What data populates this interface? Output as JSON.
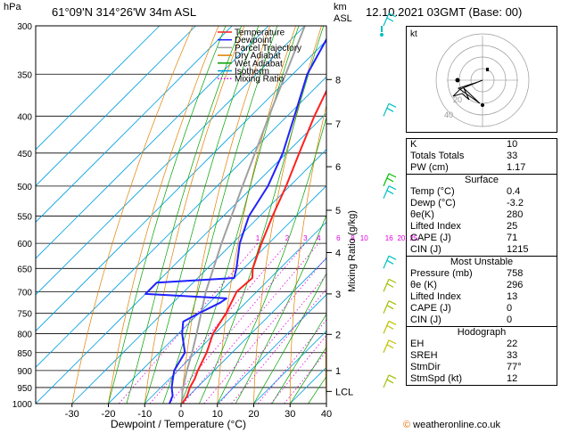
{
  "header": {
    "pressure_unit": "hPa",
    "location": "61°09'N  314°26'W  34m  ASL",
    "height_unit": "km",
    "height_ref": "ASL",
    "datetime": "12.10.2021  03GMT  (Base: 00)"
  },
  "chart_data": {
    "type": "skew-t",
    "xlabel": "Dewpoint / Temperature (°C)",
    "ylabel_right": "Mixing Ratio (g/kg)",
    "pressure_levels": [
      300,
      350,
      400,
      450,
      500,
      550,
      600,
      650,
      700,
      750,
      800,
      850,
      900,
      950,
      1000
    ],
    "temperature_ticks": [
      -30,
      -20,
      -10,
      0,
      10,
      20,
      30,
      40
    ],
    "xlim": [
      -40,
      40
    ],
    "ylim": [
      1000,
      300
    ],
    "km_ticks": [
      {
        "label": "8",
        "p": 356
      },
      {
        "label": "7",
        "p": 410
      },
      {
        "label": "6",
        "p": 470
      },
      {
        "label": "5",
        "p": 540
      },
      {
        "label": "4",
        "p": 618
      },
      {
        "label": "3",
        "p": 705
      },
      {
        "label": "2",
        "p": 802
      },
      {
        "label": "1",
        "p": 900
      },
      {
        "label": "LCL",
        "p": 962
      }
    ],
    "mixing_ratio_labels": [
      "1",
      "2",
      "3",
      "4",
      "6",
      "8",
      "10",
      "16",
      "20",
      "25"
    ],
    "mixing_ratio_values": [
      1,
      2,
      3,
      4,
      6,
      8,
      10,
      16,
      20,
      25
    ],
    "legend": [
      "Temperature",
      "Dewpoint",
      "Parcel Trajectory",
      "Dry Adiabat",
      "Wet Adiabat",
      "Isotherm",
      "Mixing Ratio"
    ],
    "legend_placement": "top-right",
    "colors": {
      "temperature": "#ff2020",
      "dewpoint": "#2020ff",
      "parcel": "#a0a0a0",
      "dry_adiabat": "#e08000",
      "wet_adiabat": "#00a000",
      "isotherm": "#00a0e0",
      "mixing_ratio": "#e000e0"
    },
    "temperature_profile": [
      {
        "p": 1000,
        "t": 0.4
      },
      {
        "p": 975,
        "t": -0.5
      },
      {
        "p": 950,
        "t": -2.0
      },
      {
        "p": 925,
        "t": -3.0
      },
      {
        "p": 900,
        "t": -4.5
      },
      {
        "p": 850,
        "t": -7.0
      },
      {
        "p": 800,
        "t": -10.5
      },
      {
        "p": 750,
        "t": -12.5
      },
      {
        "p": 700,
        "t": -15.5
      },
      {
        "p": 670,
        "t": -15.0
      },
      {
        "p": 650,
        "t": -17.5
      },
      {
        "p": 600,
        "t": -22.0
      },
      {
        "p": 550,
        "t": -26.5
      },
      {
        "p": 500,
        "t": -31.0
      },
      {
        "p": 450,
        "t": -36.5
      },
      {
        "p": 400,
        "t": -42.5
      },
      {
        "p": 350,
        "t": -48.5
      },
      {
        "p": 300,
        "t": -54.0
      }
    ],
    "dewpoint_profile": [
      {
        "p": 1000,
        "t": -3.2
      },
      {
        "p": 975,
        "t": -4.5
      },
      {
        "p": 950,
        "t": -7.0
      },
      {
        "p": 925,
        "t": -9.0
      },
      {
        "p": 900,
        "t": -11.0
      },
      {
        "p": 850,
        "t": -13.0
      },
      {
        "p": 800,
        "t": -19.0
      },
      {
        "p": 770,
        "t": -22.0
      },
      {
        "p": 750,
        "t": -20.0
      },
      {
        "p": 725,
        "t": -17.0
      },
      {
        "p": 715,
        "t": -16.5
      },
      {
        "p": 705,
        "t": -40.0
      },
      {
        "p": 690,
        "t": -40.0
      },
      {
        "p": 680,
        "t": -40.0
      },
      {
        "p": 670,
        "t": -20.0
      },
      {
        "p": 650,
        "t": -22.0
      },
      {
        "p": 600,
        "t": -28.0
      },
      {
        "p": 550,
        "t": -33.0
      },
      {
        "p": 500,
        "t": -36.0
      },
      {
        "p": 450,
        "t": -41.0
      },
      {
        "p": 400,
        "t": -48.0
      },
      {
        "p": 350,
        "t": -56.0
      },
      {
        "p": 300,
        "t": -62.0
      }
    ],
    "parcel_profile": [
      {
        "p": 1000,
        "t": 0.4
      },
      {
        "p": 962,
        "t": -3.0
      },
      {
        "p": 900,
        "t": -7.5
      },
      {
        "p": 850,
        "t": -11.0
      },
      {
        "p": 800,
        "t": -15.0
      },
      {
        "p": 700,
        "t": -24.0
      },
      {
        "p": 600,
        "t": -33.0
      },
      {
        "p": 500,
        "t": -43.0
      },
      {
        "p": 400,
        "t": -55.0
      },
      {
        "p": 300,
        "t": -70.0
      }
    ]
  },
  "hodograph": {
    "label": "kt",
    "ring_labels": [
      "20",
      "40"
    ]
  },
  "indices": {
    "k_label": "K",
    "k_value": "10",
    "tt_label": "Totals Totals",
    "tt_value": "33",
    "pw_label": "PW (cm)",
    "pw_value": "1.17"
  },
  "surface": {
    "title": "Surface",
    "rows": [
      {
        "label": "Temp (°C)",
        "value": "0.4"
      },
      {
        "label": "Dewp (°C)",
        "value": "-3.2"
      },
      {
        "label": "θe(K)",
        "value": "280"
      },
      {
        "label": "Lifted Index",
        "value": "25"
      },
      {
        "label": "CAPE (J)",
        "value": "71"
      },
      {
        "label": "CIN (J)",
        "value": "1215"
      }
    ]
  },
  "most_unstable": {
    "title": "Most Unstable",
    "rows": [
      {
        "label": "Pressure (mb)",
        "value": "758"
      },
      {
        "label": "θe (K)",
        "value": "296"
      },
      {
        "label": "Lifted Index",
        "value": "13"
      },
      {
        "label": "CAPE (J)",
        "value": "0"
      },
      {
        "label": "CIN (J)",
        "value": "0"
      }
    ]
  },
  "hodograph_table": {
    "title": "Hodograph",
    "rows": [
      {
        "label": "EH",
        "value": "22"
      },
      {
        "label": "SREH",
        "value": "33"
      },
      {
        "label": "StmDir",
        "value": "77°"
      },
      {
        "label": "StmSpd (kt)",
        "value": "12"
      }
    ]
  },
  "credit": {
    "text": "© weatheronline.co.uk",
    "symbol": "©",
    "site": "weatheronline.co.uk"
  }
}
